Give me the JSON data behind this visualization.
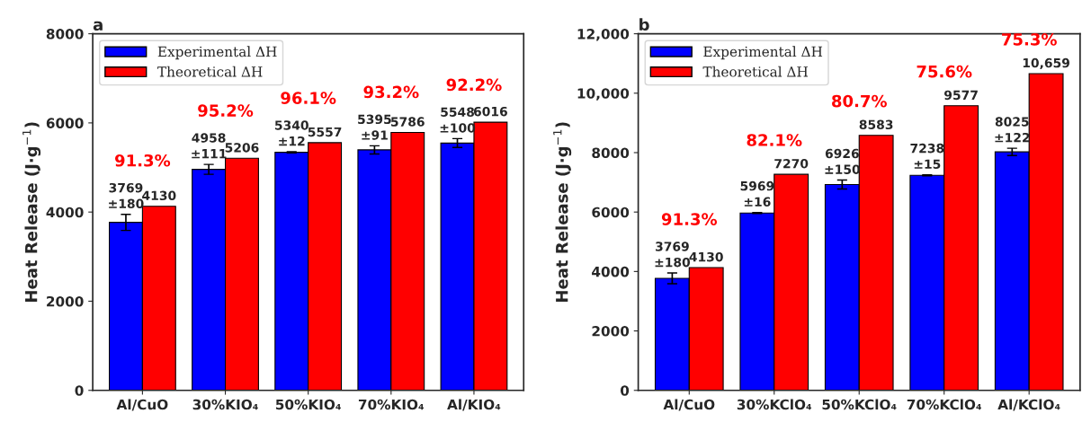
{
  "chart_data": [
    {
      "type": "bar",
      "title": "a",
      "ylabel": "Heat Release (J·g$^{−1}$)",
      "categories": [
        "Al/CuO",
        "30%KIO₄",
        "50%KIO₄",
        "70%KIO₄",
        "Al/KIO₄"
      ],
      "series": [
        {
          "name": "Experimental ΔH",
          "color": "#0000ff",
          "values": [
            3769,
            4958,
            5340,
            5395,
            5548
          ],
          "errors": [
            180,
            111,
            12,
            91,
            100
          ],
          "value_labels": [
            "3769\n±180",
            "4958\n±111",
            "5340\n±12",
            "5395\n±91",
            "5548\n±100"
          ]
        },
        {
          "name": "Theoretical ΔH",
          "color": "#ff0000",
          "values": [
            4130,
            5206,
            5557,
            5786,
            6016
          ],
          "value_labels": [
            "4130",
            "5206",
            "5557",
            "5786",
            "6016"
          ]
        }
      ],
      "annotations": [
        "91.3%",
        "95.2%",
        "96.1%",
        "93.2%",
        "92.2%"
      ],
      "ylim": [
        0,
        8000
      ],
      "yticks": [
        0,
        2000,
        4000,
        6000,
        8000
      ],
      "legend": "top left",
      "grid": false
    },
    {
      "type": "bar",
      "title": "b",
      "ylabel": "Heat Release (J·g$^{−1}$)",
      "categories": [
        "Al/CuO",
        "30%KClO₄",
        "50%KClO₄",
        "70%KClO₄",
        "Al/KClO₄"
      ],
      "series": [
        {
          "name": "Experimental ΔH",
          "color": "#0000ff",
          "values": [
            3769,
            5969,
            6926,
            7238,
            8025
          ],
          "errors": [
            180,
            16,
            150,
            15,
            122
          ],
          "value_labels": [
            "3769\n±180",
            "5969\n±16",
            "6926\n±150",
            "7238\n±15",
            "8025\n±122"
          ]
        },
        {
          "name": "Theoretical ΔH",
          "color": "#ff0000",
          "values": [
            4130,
            7270,
            8583,
            9577,
            10659
          ],
          "value_labels": [
            "4130",
            "7270",
            "8583",
            "9577",
            "10,659"
          ]
        }
      ],
      "annotations": [
        "91.3%",
        "82.1%",
        "80.7%",
        "75.6%",
        "75.3%"
      ],
      "ylim": [
        0,
        12000
      ],
      "yticks": [
        0,
        2000,
        4000,
        6000,
        8000,
        {
          "value": 10000,
          "label": "10,000"
        },
        {
          "value": 12000,
          "label": "12,000"
        }
      ],
      "legend": "top left",
      "grid": false
    }
  ]
}
